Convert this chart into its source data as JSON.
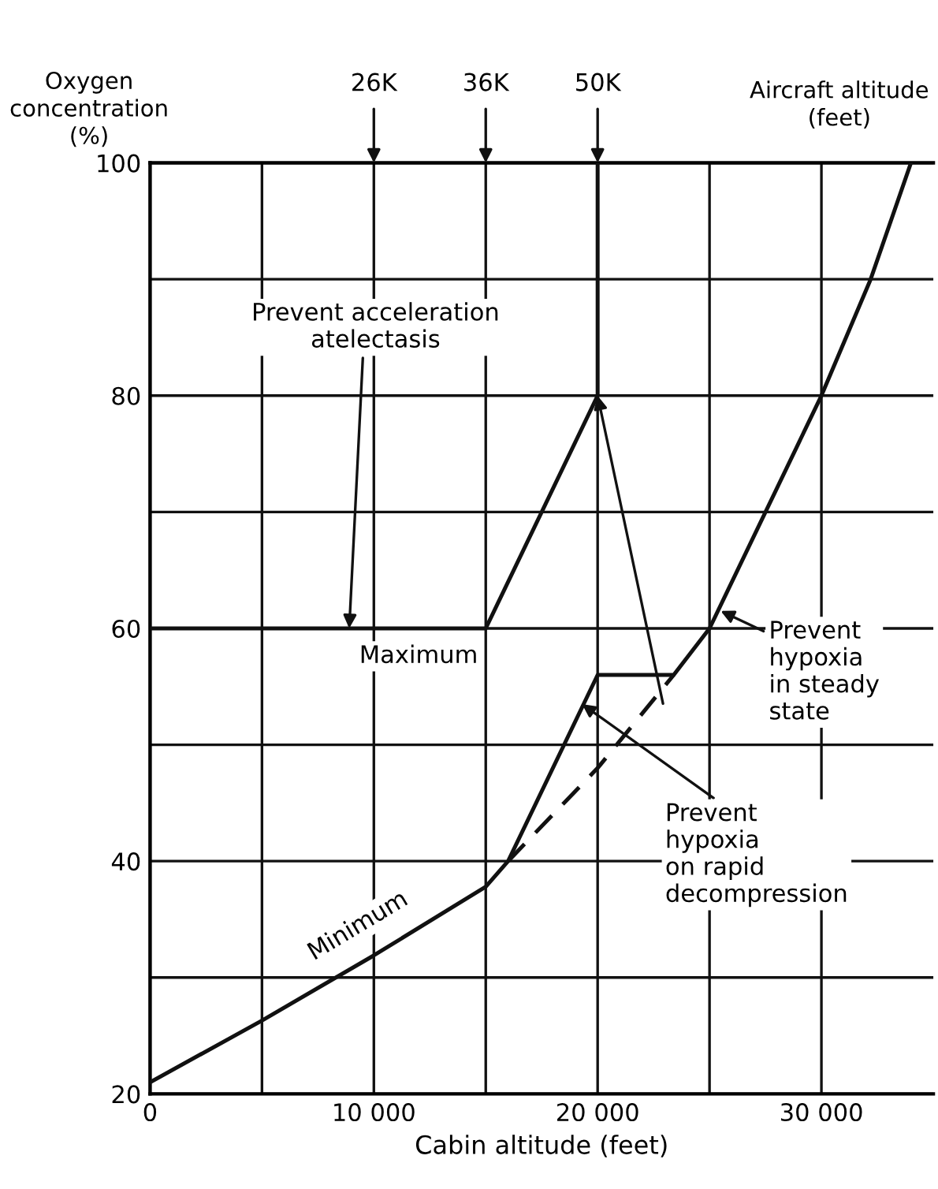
{
  "chart_data": {
    "type": "line",
    "xlabel": "Cabin altitude (feet)",
    "ylabel": "Oxygen\nconcentration\n(%)",
    "series": [
      {
        "color": "#111111",
        "line_style": "solid",
        "x": [
          0,
          15000,
          20000,
          20000
        ],
        "values": [
          60,
          60,
          80,
          100
        ]
      },
      {
        "color": "#111111",
        "line_style": "solid",
        "x": [
          0,
          5000,
          10000,
          15000,
          16000,
          20000,
          23400,
          25000,
          30000,
          32200,
          34000
        ],
        "values": [
          21,
          26.3,
          31.9,
          37.8,
          40,
          56,
          56,
          60,
          80,
          90,
          100
        ]
      },
      {
        "color": "#111111",
        "line_style": "dashed",
        "x": [
          16000,
          20000,
          23400
        ],
        "values": [
          40,
          48,
          56
        ]
      }
    ],
    "xlim": [
      0,
      35000
    ],
    "ylim": [
      20,
      100
    ],
    "xticks": [
      0,
      {
        "value": 5000,
        "label": null
      },
      {
        "value": 10000,
        "label": "10 000"
      },
      {
        "value": 15000,
        "label": null
      },
      {
        "value": 20000,
        "label": "20 000"
      },
      {
        "value": 25000,
        "label": null
      },
      {
        "value": 30000,
        "label": "30 000"
      }
    ],
    "yticks": [
      20,
      {
        "value": 30,
        "label": null
      },
      40,
      {
        "value": 50,
        "label": null
      },
      60,
      {
        "value": 70,
        "label": null
      },
      80,
      {
        "value": 90,
        "label": null
      },
      100
    ],
    "grid": true,
    "marker": "none",
    "annotations": [
      "Aircraft altitude\n(feet)",
      "26K",
      "36K",
      "50K",
      "Maximum",
      "Minimum",
      {
        "text": "Prevent acceleration\natelectasis",
        "x": 8900,
        "y": 60
      },
      {
        "text": "Prevent\nhypoxia\nin steady\nstate",
        "x": 25500,
        "y": 61.5
      },
      {
        "text": "Prevent\nhypoxia\non rapid\ndecompression",
        "x": 19300,
        "y": 53.5
      }
    ]
  }
}
